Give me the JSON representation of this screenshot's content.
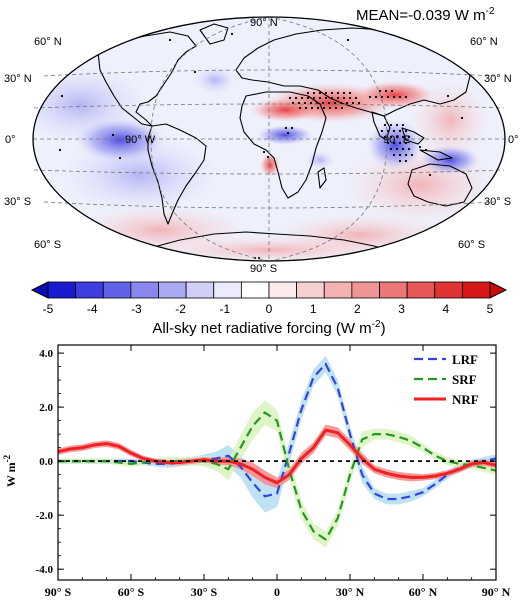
{
  "map": {
    "mean_text": "MEAN=-0.039 W m",
    "mean_exp": "-2",
    "lat_labels_left": [
      "60° N",
      "30° N",
      "0°",
      "30° S",
      "60° S"
    ],
    "lat_labels_right": [
      "60° N",
      "30° N",
      "0°",
      "30° S",
      "60° S"
    ],
    "top_label": "90° N",
    "bottom_label": "90° S",
    "lon_labels": [
      "90° W",
      "90° E"
    ],
    "colors": {
      "neg": "#2233dd",
      "pos": "#ee2222"
    }
  },
  "colorbar": {
    "ticks": [
      "-5",
      "-4",
      "-3",
      "-2",
      "-1",
      "0",
      "1",
      "2",
      "3",
      "4",
      "5"
    ],
    "title": "All-sky net radiative forcing  (W m",
    "title_exp": "-2",
    "title_close": ")",
    "colors": [
      "#1a1ad0",
      "#3d3de0",
      "#6262e8",
      "#8787ee",
      "#aaaaf3",
      "#cfcff8",
      "#ebebfc",
      "#ffffff",
      "#fcebeb",
      "#f8cfcf",
      "#f4b2b2",
      "#f09595",
      "#eb7777",
      "#e65656",
      "#e03434",
      "#d81818"
    ]
  },
  "chart_data": {
    "type": "line",
    "xlabel": "",
    "ylabel": "W m",
    "ylabel_exp": "-2",
    "xlim": [
      -90,
      90
    ],
    "ylim": [
      -4.4,
      4.3
    ],
    "x_ticks": [
      "90° S",
      "60° S",
      "30° S",
      "0",
      "30° N",
      "60° N",
      "90° N"
    ],
    "y_ticks": [
      "4.0",
      "2.0",
      "0.0",
      "-2.0",
      "-4.0"
    ],
    "legend_position": "top-right",
    "x": [
      -90,
      -85,
      -80,
      -75,
      -70,
      -65,
      -60,
      -55,
      -50,
      -45,
      -40,
      -35,
      -30,
      -25,
      -20,
      -15,
      -10,
      -5,
      0,
      5,
      10,
      15,
      20,
      25,
      30,
      35,
      40,
      45,
      50,
      55,
      60,
      65,
      70,
      75,
      80,
      85,
      90
    ],
    "series": [
      {
        "name": "LRF",
        "color": "#3344dd",
        "dash": "dashed",
        "band_color": "#a8d8f0",
        "values": [
          0.0,
          0.0,
          0.0,
          0.0,
          0.0,
          0.0,
          0.0,
          -0.05,
          -0.1,
          -0.1,
          -0.05,
          0.0,
          0.05,
          0.1,
          0.2,
          -0.2,
          -0.8,
          -1.3,
          -1.2,
          0.3,
          1.9,
          3.1,
          3.6,
          2.7,
          1.0,
          -0.5,
          -1.2,
          -1.4,
          -1.4,
          -1.3,
          -1.15,
          -0.85,
          -0.5,
          -0.25,
          -0.1,
          0.0,
          0.1
        ],
        "band": [
          0.1,
          0.1,
          0.1,
          0.1,
          0.1,
          0.1,
          0.1,
          0.1,
          0.1,
          0.15,
          0.15,
          0.15,
          0.2,
          0.25,
          0.4,
          0.4,
          0.55,
          0.6,
          0.5,
          0.4,
          0.35,
          0.3,
          0.3,
          0.3,
          0.3,
          0.3,
          0.2,
          0.2,
          0.2,
          0.2,
          0.15,
          0.15,
          0.15,
          0.15,
          0.15,
          0.15,
          0.15
        ]
      },
      {
        "name": "SRF",
        "color": "#229922",
        "dash": "dashed",
        "band_color": "#d4f2b4",
        "values": [
          0.0,
          0.0,
          0.0,
          0.0,
          0.0,
          -0.05,
          -0.1,
          -0.05,
          0.0,
          0.0,
          0.0,
          0.0,
          0.0,
          -0.1,
          -0.3,
          0.5,
          1.3,
          1.8,
          1.5,
          -0.3,
          -1.8,
          -2.6,
          -2.9,
          -2.1,
          -0.5,
          0.8,
          1.0,
          1.0,
          0.9,
          0.75,
          0.5,
          0.2,
          0.0,
          -0.1,
          -0.15,
          -0.25,
          -0.35
        ],
        "band": [
          0.1,
          0.1,
          0.1,
          0.1,
          0.1,
          0.1,
          0.1,
          0.1,
          0.1,
          0.15,
          0.15,
          0.15,
          0.2,
          0.25,
          0.4,
          0.45,
          0.5,
          0.45,
          0.4,
          0.4,
          0.35,
          0.3,
          0.3,
          0.3,
          0.3,
          0.3,
          0.2,
          0.2,
          0.2,
          0.2,
          0.15,
          0.15,
          0.15,
          0.15,
          0.15,
          0.15,
          0.15
        ]
      },
      {
        "name": "NRF",
        "color": "#ee2222",
        "dash": "solid",
        "band_color": "#f58a8a",
        "values": [
          0.35,
          0.45,
          0.5,
          0.6,
          0.65,
          0.55,
          0.3,
          0.1,
          0.0,
          -0.05,
          -0.05,
          0.0,
          0.05,
          0.0,
          0.0,
          -0.1,
          -0.3,
          -0.6,
          -0.8,
          -0.5,
          0.1,
          0.5,
          1.15,
          1.05,
          0.6,
          0.1,
          -0.3,
          -0.45,
          -0.55,
          -0.6,
          -0.6,
          -0.55,
          -0.45,
          -0.3,
          -0.1,
          -0.05,
          -0.15
        ],
        "band": [
          0.12,
          0.12,
          0.12,
          0.12,
          0.12,
          0.12,
          0.12,
          0.1,
          0.1,
          0.1,
          0.1,
          0.1,
          0.1,
          0.12,
          0.15,
          0.2,
          0.25,
          0.25,
          0.2,
          0.2,
          0.2,
          0.2,
          0.2,
          0.2,
          0.2,
          0.2,
          0.15,
          0.15,
          0.15,
          0.15,
          0.12,
          0.12,
          0.12,
          0.12,
          0.12,
          0.12,
          0.12
        ]
      }
    ]
  }
}
